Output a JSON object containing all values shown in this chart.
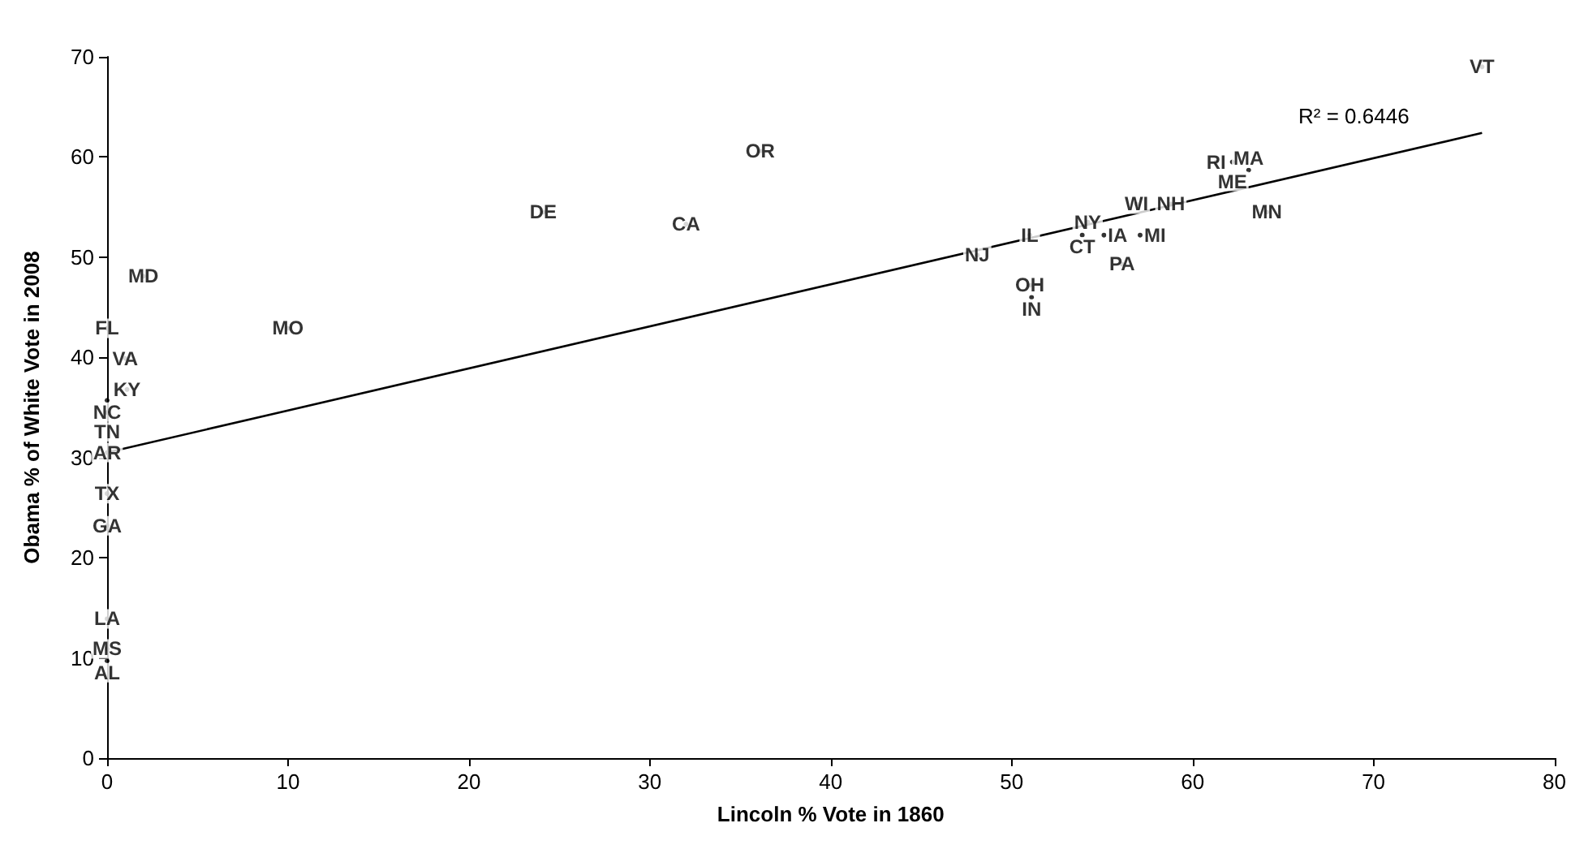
{
  "chart_data": {
    "type": "scatter",
    "xlabel": "Lincoln % Vote in 1860",
    "ylabel": "Obama % of White Vote in 2008",
    "xlim": [
      0,
      80
    ],
    "xticks": [
      0,
      10,
      20,
      30,
      40,
      50,
      60,
      70,
      80
    ],
    "ylim": [
      0,
      70
    ],
    "yticks": [
      0,
      10,
      20,
      30,
      40,
      50,
      60,
      70
    ],
    "grid": false,
    "annotations": [
      "R² = 0.6446"
    ],
    "series": [
      {
        "color": "#000000",
        "marker": "circle",
        "x": [
          76,
          36.1,
          24.1,
          32,
          2,
          10,
          0,
          1,
          1.1,
          0,
          0,
          0,
          0,
          0,
          0,
          0,
          0,
          48.1,
          51,
          51,
          51.1,
          54.2,
          53.9,
          55.1,
          57.1,
          56.1,
          56.9,
          58.8,
          61.3,
          62.2,
          63.1,
          64.1
        ],
        "values": [
          69,
          60.6,
          54.5,
          53.3,
          48.1,
          42.9,
          42.9,
          39.9,
          36.8,
          35.7,
          34.5,
          30.5,
          26.4,
          23.2,
          13.9,
          10.9,
          9.7,
          50.2,
          52.2,
          47.2,
          46,
          53.5,
          52.2,
          52.2,
          52.2,
          49.3,
          55.3,
          55.3,
          59.5,
          59.5,
          58.7,
          54.5
        ],
        "value_labels": [
          "VT",
          "OR",
          "DE",
          "CA",
          "MD",
          "MO",
          "FL",
          "VA",
          "KY",
          "NC",
          "TN",
          "AR",
          "TX",
          "GA",
          "LA",
          "MS",
          "AL",
          "NJ",
          "IL",
          "OH",
          "IN",
          "NY",
          "CT",
          "IA",
          "MI",
          "PA",
          "WI",
          "NH",
          "RI",
          "ME",
          "MA",
          "MN"
        ]
      },
      {
        "type": "line",
        "color": "#000000",
        "line_style": "solid",
        "x": [
          0,
          76
        ],
        "values": [
          30.5,
          62.4
        ]
      }
    ]
  }
}
